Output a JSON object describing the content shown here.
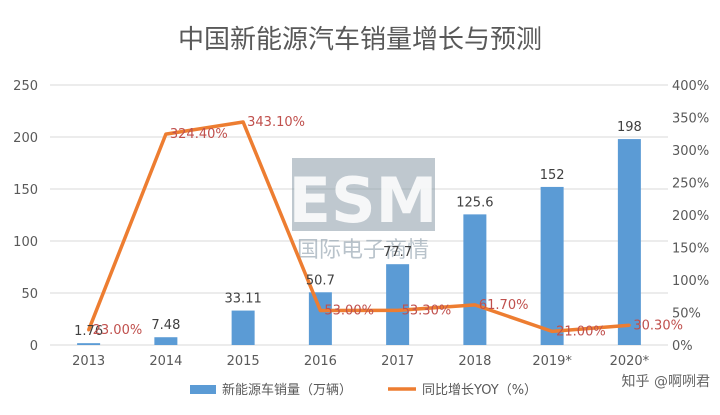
{
  "chart_data": {
    "type": "bar",
    "title": "中国新能源汽车销量增长与预测",
    "categories": [
      "2013",
      "2014",
      "2015",
      "2016",
      "2017",
      "2018",
      "2019*",
      "2020*"
    ],
    "series": [
      {
        "name": "新能源车销量（万辆）",
        "type": "bar",
        "axis": "left",
        "color": "#5b9bd5",
        "values": [
          1.76,
          7.48,
          33.11,
          50.7,
          77.7,
          125.6,
          152,
          198
        ],
        "labels": [
          "1.76",
          "7.48",
          "33.11",
          "50.7",
          "77.7",
          "125.6",
          "152",
          "198"
        ]
      },
      {
        "name": "同比增长YOY（%）",
        "type": "line",
        "axis": "right",
        "color": "#ed7d31",
        "values": [
          23.0,
          324.4,
          343.1,
          53.0,
          53.3,
          61.7,
          21.0,
          30.3
        ],
        "labels": [
          "23.00%",
          "324.40%",
          "343.10%",
          "53.00%",
          "53.30%",
          "61.70%",
          "21.00%",
          "30.30%"
        ]
      }
    ],
    "y_left": {
      "min": 0,
      "max": 250,
      "ticks": [
        "0",
        "50",
        "100",
        "150",
        "200",
        "250"
      ]
    },
    "y_right": {
      "min": 0,
      "max": 400,
      "ticks": [
        "0%",
        "50%",
        "100%",
        "150%",
        "200%",
        "250%",
        "300%",
        "350%",
        "400%"
      ]
    },
    "grid": true,
    "legend_position": "bottom",
    "line_label_color": "#c0504d"
  },
  "watermark": {
    "logo": "ESM",
    "subtitle": "国际电子商情"
  },
  "credit": "知乎 @啊咧君"
}
